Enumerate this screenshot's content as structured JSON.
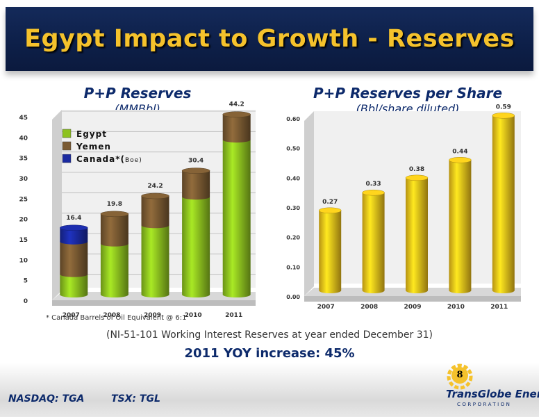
{
  "title": "Egypt Impact to Growth - Reserves",
  "colors": {
    "title_bg": "#0d1f48",
    "title_text": "#f5c22c",
    "egypt": "#8dc21f",
    "yemen": "#7a5a32",
    "canada": "#1a2aa0",
    "bar_gold": "#f2c21a",
    "heading": "#0d2a6b"
  },
  "footnote": "* Canada Barrels of Oil Equivalent @ 6:1",
  "caption": "(NI-51-101 Working Interest Reserves at year ended December 31)",
  "yoy": "2011 YOY increase: 45%",
  "ticker_nasdaq": "NASDAQ: TGA",
  "ticker_tsx": "TSX: TGL",
  "logo": {
    "name": "TransGlobe Energy",
    "sub": "CORPORATION",
    "page": "8"
  },
  "chart_data": [
    {
      "type": "bar",
      "stacked": true,
      "title": "P+P Reserves",
      "subtitle": "(MMBbl)",
      "categories": [
        "2007",
        "2008",
        "2009",
        "2010",
        "2011"
      ],
      "series": [
        {
          "name": "Egypt",
          "values": [
            5.0,
            12.5,
            17.0,
            24.0,
            38.0
          ]
        },
        {
          "name": "Yemen",
          "values": [
            8.0,
            7.3,
            7.2,
            6.4,
            6.2
          ]
        },
        {
          "name": "Canada*(",
          "name_suffix": "Boe)",
          "values": [
            3.4,
            0,
            0,
            0,
            0
          ]
        }
      ],
      "totals": [
        "16.4",
        "19.8",
        "24.2",
        "30.4",
        "44.2"
      ],
      "yticks": [
        "0",
        "5",
        "10",
        "15",
        "20",
        "25",
        "30",
        "35",
        "40",
        "45"
      ],
      "ylim": [
        0,
        45
      ],
      "legend_position": "top-left",
      "grid": true
    },
    {
      "type": "bar",
      "title": "P+P Reserves per Share",
      "subtitle": "(Bbl/share diluted)",
      "categories": [
        "2007",
        "2008",
        "2009",
        "2010",
        "2011"
      ],
      "values": [
        0.27,
        0.33,
        0.38,
        0.44,
        0.59
      ],
      "labels": [
        "0.27",
        "0.33",
        "0.38",
        "0.44",
        "0.59"
      ],
      "yticks": [
        "0.00",
        "0.10",
        "0.20",
        "0.30",
        "0.40",
        "0.50",
        "0.60"
      ],
      "ylim": [
        0,
        0.6
      ],
      "grid": false
    }
  ]
}
